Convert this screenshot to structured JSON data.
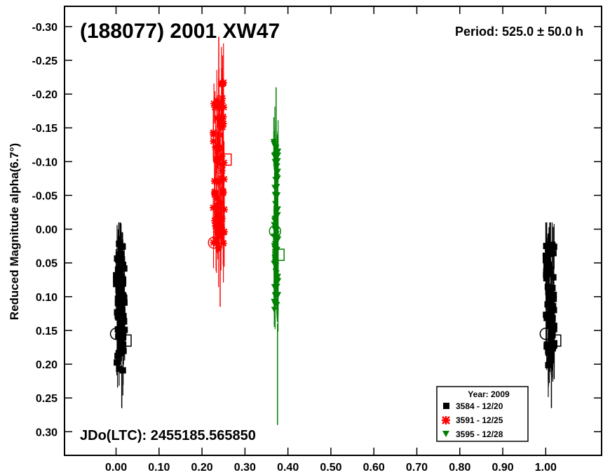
{
  "chart_data": {
    "type": "scatter",
    "title": "(188077) 2001 XW47",
    "period_text": "Period: 525.0 ± 50.0 h",
    "jdo_text": "JDo(LTC): 2455185.565850",
    "xlabel": "",
    "ylabel": "Reduced Magnitude alpha(6.7°)",
    "xlim": [
      -0.12,
      1.13
    ],
    "ylim": [
      0.335,
      -0.33
    ],
    "y_inverted": true,
    "x_ticks": [
      "0.00",
      "0.10",
      "0.20",
      "0.30",
      "0.40",
      "0.50",
      "0.60",
      "0.70",
      "0.80",
      "0.90",
      "1.00"
    ],
    "x_tick_values": [
      0.0,
      0.1,
      0.2,
      0.3,
      0.4,
      0.5,
      0.6,
      0.7,
      0.8,
      0.9,
      1.0
    ],
    "y_ticks": [
      "-0.30",
      "-0.25",
      "-0.20",
      "-0.15",
      "-0.10",
      "-0.05",
      "0.00",
      "0.05",
      "0.10",
      "0.15",
      "0.20",
      "0.25",
      "0.30"
    ],
    "y_tick_values": [
      -0.3,
      -0.25,
      -0.2,
      -0.15,
      -0.1,
      -0.05,
      0.0,
      0.05,
      0.1,
      0.15,
      0.2,
      0.25,
      0.3
    ],
    "legend": {
      "title": "Year: 2009",
      "position": "bottom-right",
      "entries": [
        "3584 - 12/20",
        "3591 - 12/25",
        "3595 - 12/28"
      ]
    },
    "series": [
      {
        "name": "3584 - 12/20",
        "color": "#000000",
        "marker": "square",
        "x_range": [
          0.0,
          0.02
        ],
        "y_range": [
          0.02,
          0.21
        ],
        "error_range": [
          -0.01,
          0.265
        ],
        "repeat_offset": 1.0,
        "start_marker": {
          "x": 0.0,
          "y": 0.155
        },
        "end_marker": {
          "x": 0.022,
          "y": 0.165
        }
      },
      {
        "name": "3591 - 12/25",
        "color": "#ff0000",
        "marker": "x",
        "x_range": [
          0.226,
          0.252
        ],
        "y_range": [
          -0.22,
          0.03
        ],
        "error_range": [
          -0.285,
          0.115
        ],
        "start_marker": {
          "x": 0.228,
          "y": 0.02
        },
        "end_marker": {
          "x": 0.255,
          "y": -0.103
        }
      },
      {
        "name": "3595 - 12/28",
        "color": "#008000",
        "marker": "triangle-down",
        "x_range": [
          0.367,
          0.378
        ],
        "y_range": [
          -0.13,
          0.14
        ],
        "error_range": [
          -0.21,
          0.29
        ],
        "start_marker": {
          "x": 0.37,
          "y": 0.003
        },
        "end_marker": {
          "x": 0.378,
          "y": 0.038
        }
      }
    ]
  }
}
